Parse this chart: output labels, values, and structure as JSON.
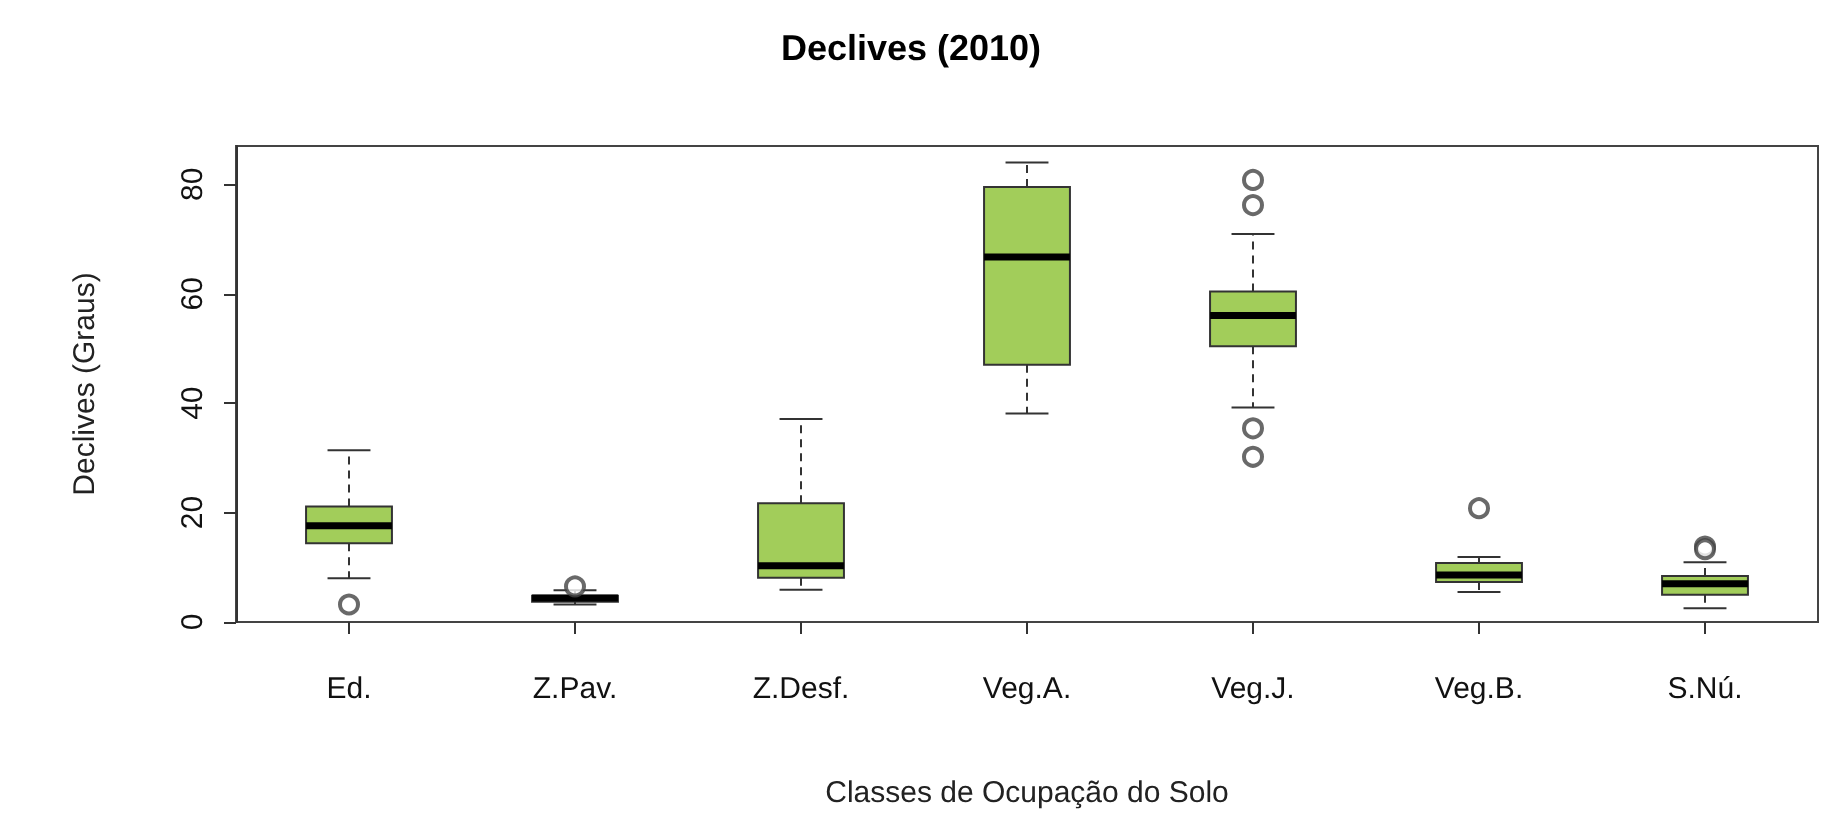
{
  "chart_data": {
    "type": "box",
    "title": "Declives (2010)",
    "xlabel": "Classes de Ocupação do Solo",
    "ylabel": "Declives (Graus)",
    "categories": [
      "Ed.",
      "Z.Pav.",
      "Z.Desf.",
      "Veg.A.",
      "Veg.J.",
      "Veg.B.",
      "S.Nú."
    ],
    "color": "#a2cd5a",
    "line_style": "dashed",
    "grid": false,
    "boxes": [
      {
        "low": 8,
        "q1": 14.4,
        "median": 17.6,
        "q3": 21.1,
        "high": 31.4,
        "outliers": [
          3.2
        ]
      },
      {
        "low": 3.2,
        "q1": 3.7,
        "median": 4.4,
        "q3": 4.8,
        "high": 5.8,
        "outliers": [
          6.5
        ]
      },
      {
        "low": 5.9,
        "q1": 8.1,
        "median": 10.3,
        "q3": 21.7,
        "high": 37.1
      },
      {
        "low": 38.1,
        "q1": 47,
        "median": 66.7,
        "q3": 79.5,
        "high": 84
      },
      {
        "low": 39.2,
        "q1": 50.4,
        "median": 56,
        "q3": 60.4,
        "high": 70.9,
        "outliers": [
          80.8,
          76.2,
          35.4,
          30.2
        ]
      },
      {
        "low": 5.5,
        "q1": 7.3,
        "median": 8.6,
        "q3": 10.8,
        "high": 11.9,
        "outliers": [
          20.8
        ]
      },
      {
        "low": 2.5,
        "q1": 5,
        "median": 7,
        "q3": 8.4,
        "high": 10.9,
        "outliers": [
          13.8,
          13.3
        ]
      }
    ],
    "ylim": [
      0,
      87
    ],
    "yticks": [
      0,
      20,
      40,
      60,
      80
    ]
  }
}
